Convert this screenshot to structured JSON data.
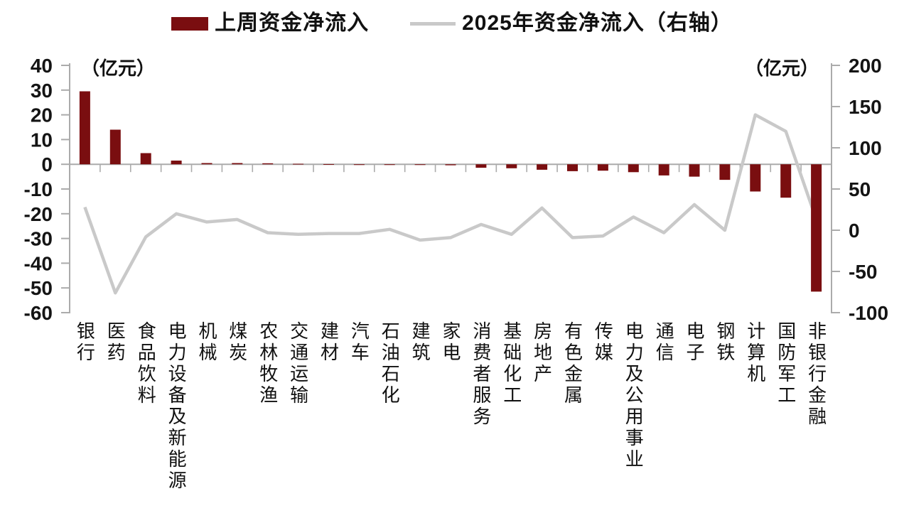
{
  "legend": {
    "items": [
      {
        "label": "上周资金净流入",
        "marker": "bar",
        "color": "#7a0e10"
      },
      {
        "label": "2025年资金净流入（右轴）",
        "marker": "line",
        "color": "#c9c9c9"
      }
    ]
  },
  "left_axis": {
    "unit_label": "（亿元）",
    "min": -60,
    "max": 40,
    "ticks": [
      40,
      30,
      20,
      10,
      0,
      -10,
      -20,
      -30,
      -40,
      -50,
      -60
    ]
  },
  "right_axis": {
    "unit_label": "（亿元）",
    "min": -100,
    "max": 200,
    "ticks": [
      200,
      150,
      100,
      50,
      0,
      -50,
      -100
    ]
  },
  "chart_data": {
    "type": "bar",
    "title": "",
    "categories": [
      "银行",
      "医药",
      "食品饮料",
      "电力设备及新能源",
      "机械",
      "煤炭",
      "农林牧渔",
      "交通运输",
      "建材",
      "汽车",
      "石油石化",
      "建筑",
      "家电",
      "消费者服务",
      "基础化工",
      "房地产",
      "有色金属",
      "传媒",
      "电力及公用事业",
      "通信",
      "电子",
      "钢铁",
      "计算机",
      "国防军工",
      "非银行金融"
    ],
    "series": [
      {
        "name": "上周资金净流入",
        "type": "bar",
        "axis": "left",
        "color": "#7a0e10",
        "values": [
          29.5,
          14,
          4.5,
          1.5,
          0.5,
          0.5,
          0.4,
          0.2,
          0.1,
          -0.1,
          -0.2,
          -0.2,
          -0.4,
          -1.4,
          -1.6,
          -2.2,
          -2.8,
          -2.6,
          -3.2,
          -4.5,
          -5,
          -6.3,
          -11,
          -13.5,
          -51.5
        ]
      },
      {
        "name": "2025年资金净流入（右轴）",
        "type": "line",
        "axis": "right",
        "color": "#c9c9c9",
        "values": [
          28,
          -76,
          -8,
          20,
          10,
          13,
          -3,
          -5,
          -4,
          -4,
          1,
          -12,
          -9,
          7,
          -5,
          27,
          -9,
          -7,
          16,
          -3,
          31,
          0,
          140,
          120,
          13
        ]
      }
    ],
    "left_ylim": [
      -60,
      40
    ],
    "right_ylim": [
      -100,
      200
    ],
    "grid": false,
    "legend_position": "top"
  }
}
